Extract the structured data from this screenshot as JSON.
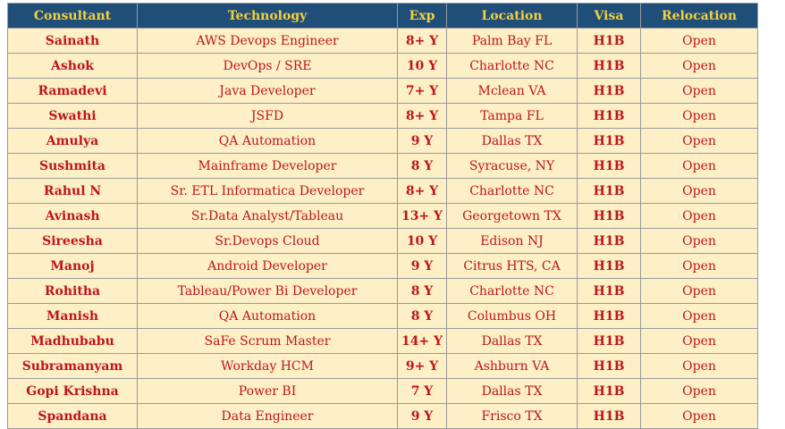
{
  "table": {
    "headers": [
      "Consultant",
      "Technology",
      "Exp",
      "Location",
      "Visa",
      "Relocation"
    ],
    "rows": [
      [
        "Sainath",
        "AWS Devops Engineer",
        "8+ Y",
        "Palm Bay FL",
        "H1B",
        "Open"
      ],
      [
        "Ashok",
        "DevOps / SRE",
        "10 Y",
        "Charlotte NC",
        "H1B",
        "Open"
      ],
      [
        "Ramadevi",
        "Java Developer",
        "7+ Y",
        "Mclean VA",
        "H1B",
        "Open"
      ],
      [
        "Swathi",
        "JSFD",
        "8+ Y",
        "Tampa FL",
        "H1B",
        "Open"
      ],
      [
        "Amulya",
        "QA Automation",
        "9 Y",
        "Dallas TX",
        "H1B",
        "Open"
      ],
      [
        "Sushmita",
        "Mainframe Developer",
        "8 Y",
        "Syracuse, NY",
        "H1B",
        "Open"
      ],
      [
        "Rahul N",
        "Sr. ETL Informatica Developer",
        "8+ Y",
        "Charlotte NC",
        "H1B",
        "Open"
      ],
      [
        "Avinash",
        "Sr.Data Analyst/Tableau",
        "13+ Y",
        "Georgetown TX",
        "H1B",
        "Open"
      ],
      [
        "Sireesha",
        "Sr.Devops Cloud",
        "10 Y",
        "Edison NJ",
        "H1B",
        "Open"
      ],
      [
        "Manoj",
        "Android Developer",
        "9 Y",
        "Citrus HTS, CA",
        "H1B",
        "Open"
      ],
      [
        "Rohitha",
        "Tableau/Power Bi Developer",
        "8 Y",
        "Charlotte NC",
        "H1B",
        "Open"
      ],
      [
        "Manish",
        "QA Automation",
        "8 Y",
        "Columbus OH",
        "H1B",
        "Open"
      ],
      [
        "Madhubabu",
        "SaFe Scrum Master",
        "14+ Y",
        "Dallas TX",
        "H1B",
        "Open"
      ],
      [
        "Subramanyam",
        "Workday HCM",
        "9+ Y",
        "Ashburn VA",
        "H1B",
        "Open"
      ],
      [
        "Gopi Krishna",
        "Power BI",
        "7 Y",
        "Dallas TX",
        "H1B",
        "Open"
      ],
      [
        "Spandana",
        "Data Engineer",
        "9 Y",
        "Frisco TX",
        "H1B",
        "Open"
      ]
    ]
  },
  "colors": {
    "header_bg": "#1f4e79",
    "header_text": "#f4d03f",
    "row_bg": "#fdf0c7",
    "cell_text": "#c0141c"
  }
}
